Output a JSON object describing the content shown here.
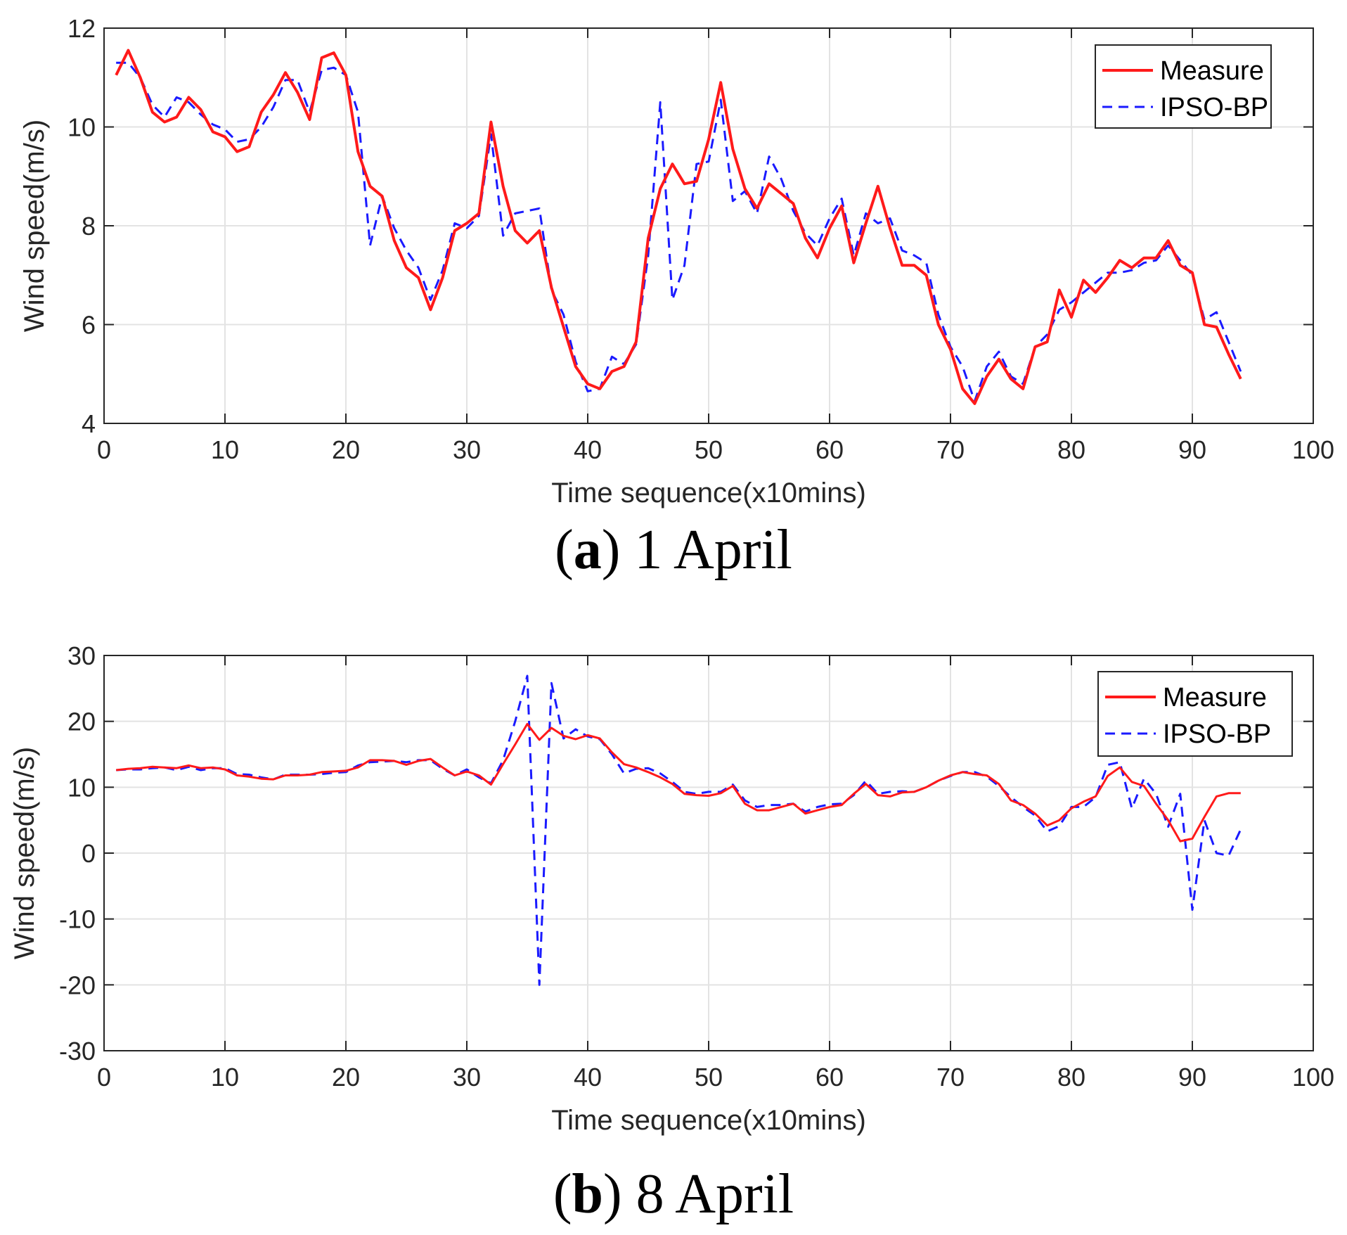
{
  "colors": {
    "measure": "#ff1a1a",
    "ipso_bp": "#1a1aff",
    "grid": "#e3e3e3",
    "axis": "#262626"
  },
  "chart_data": [
    {
      "type": "line",
      "caption": {
        "letter": "a",
        "text": "1 April"
      },
      "xlabel": "Time sequence(x10mins)",
      "ylabel": "Wind speed(m/s)",
      "xlim": [
        0,
        100
      ],
      "ylim": [
        4,
        12
      ],
      "xticks": [
        0,
        10,
        20,
        30,
        40,
        50,
        60,
        70,
        80,
        90,
        100
      ],
      "yticks": [
        4,
        6,
        8,
        10,
        12
      ],
      "grid": true,
      "legend_position": "top-right",
      "x": [
        1,
        2,
        3,
        4,
        5,
        6,
        7,
        8,
        9,
        10,
        11,
        12,
        13,
        14,
        15,
        16,
        17,
        18,
        19,
        20,
        21,
        22,
        23,
        24,
        25,
        26,
        27,
        28,
        29,
        30,
        31,
        32,
        33,
        34,
        35,
        36,
        37,
        38,
        39,
        40,
        41,
        42,
        43,
        44,
        45,
        46,
        47,
        48,
        49,
        50,
        51,
        52,
        53,
        54,
        55,
        56,
        57,
        58,
        59,
        60,
        61,
        62,
        63,
        64,
        65,
        66,
        67,
        68,
        69,
        70,
        71,
        72,
        73,
        74,
        75,
        76,
        77,
        78,
        79,
        80,
        81,
        82,
        83,
        84,
        85,
        86,
        87,
        88,
        89,
        90,
        91,
        92,
        93,
        94
      ],
      "series": [
        {
          "name": "Measure",
          "style": "solid",
          "values": [
            11.05,
            11.55,
            11.0,
            10.3,
            10.1,
            10.2,
            10.6,
            10.35,
            9.9,
            9.8,
            9.5,
            9.6,
            10.3,
            10.65,
            11.1,
            10.7,
            10.15,
            11.4,
            11.5,
            11.05,
            9.5,
            8.8,
            8.6,
            7.7,
            7.15,
            6.95,
            6.3,
            6.95,
            7.9,
            8.05,
            8.25,
            10.1,
            8.8,
            7.9,
            7.65,
            7.9,
            6.75,
            5.95,
            5.15,
            4.8,
            4.7,
            5.05,
            5.15,
            5.65,
            7.75,
            8.75,
            9.25,
            8.85,
            8.9,
            9.75,
            10.9,
            9.55,
            8.75,
            8.35,
            8.85,
            8.65,
            8.45,
            7.75,
            7.35,
            7.95,
            8.4,
            7.25,
            8.05,
            8.8,
            7.95,
            7.2,
            7.2,
            7.0,
            6.0,
            5.5,
            4.7,
            4.4,
            4.95,
            5.3,
            4.9,
            4.7,
            5.55,
            5.65,
            6.7,
            6.15,
            6.9,
            6.65,
            6.95,
            7.3,
            7.15,
            7.35,
            7.35,
            7.7,
            7.2,
            7.05,
            6.0,
            5.95,
            5.4,
            4.9
          ]
        },
        {
          "name": "IPSO-BP",
          "style": "dashed",
          "values": [
            11.3,
            11.3,
            11.0,
            10.45,
            10.2,
            10.6,
            10.5,
            10.25,
            10.05,
            9.95,
            9.7,
            9.75,
            10.0,
            10.4,
            10.95,
            10.95,
            10.3,
            11.15,
            11.2,
            11.05,
            10.3,
            7.6,
            8.6,
            7.95,
            7.5,
            7.15,
            6.5,
            7.1,
            8.05,
            7.95,
            8.2,
            9.85,
            7.8,
            8.25,
            8.3,
            8.35,
            6.7,
            6.2,
            5.25,
            4.65,
            4.7,
            5.35,
            5.2,
            5.6,
            7.4,
            10.5,
            6.5,
            7.2,
            9.25,
            9.3,
            10.55,
            8.5,
            8.7,
            8.25,
            9.4,
            8.95,
            8.3,
            7.85,
            7.6,
            8.15,
            8.55,
            7.4,
            8.25,
            8.05,
            8.15,
            7.5,
            7.4,
            7.25,
            6.2,
            5.55,
            5.15,
            4.45,
            5.15,
            5.45,
            4.95,
            4.8,
            5.55,
            5.8,
            6.3,
            6.45,
            6.65,
            6.85,
            7.05,
            7.05,
            7.1,
            7.25,
            7.3,
            7.6,
            7.3,
            7.0,
            6.1,
            6.25,
            5.65,
            5.05
          ]
        }
      ]
    },
    {
      "type": "line",
      "caption": {
        "letter": "b",
        "text": "8 April"
      },
      "xlabel": "Time sequence(x10mins)",
      "ylabel": "Wind speed(m/s)",
      "xlim": [
        0,
        100
      ],
      "ylim": [
        -30,
        30
      ],
      "xticks": [
        0,
        10,
        20,
        30,
        40,
        50,
        60,
        70,
        80,
        90,
        100
      ],
      "yticks": [
        -30,
        -20,
        -10,
        0,
        10,
        20,
        30
      ],
      "grid": true,
      "legend_position": "top-right",
      "x": [
        1,
        2,
        3,
        4,
        5,
        6,
        7,
        8,
        9,
        10,
        11,
        12,
        13,
        14,
        15,
        16,
        17,
        18,
        19,
        20,
        21,
        22,
        23,
        24,
        25,
        26,
        27,
        28,
        29,
        30,
        31,
        32,
        33,
        34,
        35,
        36,
        37,
        38,
        39,
        40,
        41,
        42,
        43,
        44,
        45,
        46,
        47,
        48,
        49,
        50,
        51,
        52,
        53,
        54,
        55,
        56,
        57,
        58,
        59,
        60,
        61,
        62,
        63,
        64,
        65,
        66,
        67,
        68,
        69,
        70,
        71,
        72,
        73,
        74,
        75,
        76,
        77,
        78,
        79,
        80,
        81,
        82,
        83,
        84,
        85,
        86,
        87,
        88,
        89,
        90,
        91,
        92,
        93,
        94
      ],
      "series": [
        {
          "name": "Measure",
          "style": "solid",
          "values": [
            12.6,
            12.8,
            12.9,
            13.1,
            13.0,
            12.9,
            13.3,
            12.9,
            13.0,
            12.7,
            11.8,
            11.6,
            11.3,
            11.2,
            11.8,
            11.8,
            11.9,
            12.3,
            12.4,
            12.5,
            13.0,
            14.1,
            14.1,
            14.0,
            13.4,
            14.0,
            14.3,
            13.0,
            11.8,
            12.4,
            11.8,
            10.4,
            13.5,
            16.5,
            19.6,
            17.2,
            19.0,
            17.8,
            17.3,
            17.9,
            17.4,
            15.3,
            13.5,
            13.0,
            12.3,
            11.5,
            10.5,
            9.0,
            8.8,
            8.7,
            9.1,
            10.2,
            7.5,
            6.5,
            6.5,
            7.0,
            7.5,
            6.0,
            6.5,
            7.0,
            7.3,
            9.0,
            10.5,
            8.8,
            8.6,
            9.2,
            9.3,
            10.0,
            11.0,
            11.8,
            12.3,
            12.0,
            11.8,
            10.5,
            8.0,
            7.3,
            6.0,
            4.2,
            5.0,
            6.8,
            7.8,
            8.6,
            11.7,
            13.0,
            10.8,
            10.2,
            7.5,
            5.0,
            1.8,
            2.2,
            5.5,
            8.6,
            9.1,
            9.1
          ]
        },
        {
          "name": "IPSO-BP",
          "style": "dashed",
          "values": [
            12.6,
            12.7,
            12.7,
            12.9,
            13.0,
            12.6,
            13.1,
            12.6,
            12.9,
            12.9,
            12.0,
            11.9,
            11.5,
            11.2,
            11.9,
            11.9,
            11.9,
            12.0,
            12.2,
            12.3,
            13.3,
            13.8,
            13.9,
            14.0,
            13.8,
            14.1,
            14.1,
            12.8,
            11.8,
            12.7,
            11.5,
            10.6,
            14.1,
            20.0,
            26.9,
            -20.0,
            25.8,
            17.4,
            18.8,
            17.7,
            17.3,
            15.0,
            12.1,
            12.8,
            12.9,
            12.1,
            10.8,
            9.3,
            9.0,
            9.3,
            9.3,
            10.4,
            8.0,
            7.0,
            7.3,
            7.3,
            7.5,
            6.3,
            7.0,
            7.4,
            7.5,
            8.8,
            11.0,
            9.0,
            9.3,
            9.4,
            9.3,
            10.0,
            11.0,
            11.7,
            12.3,
            12.3,
            11.6,
            10.2,
            8.5,
            7.0,
            5.7,
            3.3,
            4.1,
            7.0,
            7.0,
            8.5,
            13.4,
            13.8,
            6.8,
            11.3,
            9.0,
            4.0,
            9.0,
            -8.6,
            5.0,
            0.0,
            -0.4,
            3.6
          ]
        }
      ]
    }
  ]
}
